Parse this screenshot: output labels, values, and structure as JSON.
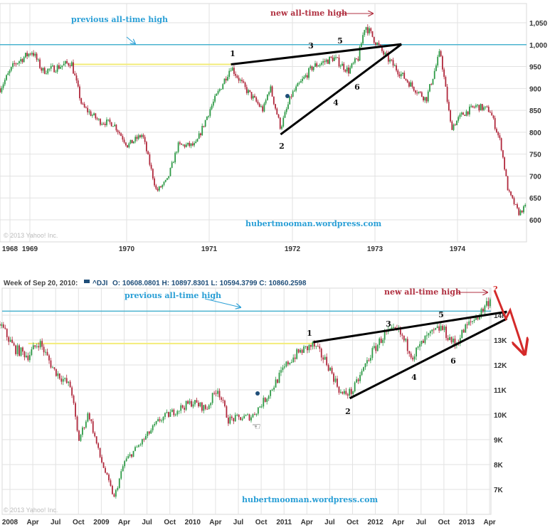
{
  "chart_data": [
    {
      "type": "candlestick",
      "title": "",
      "x_ticks": [
        "1968",
        "1969",
        "1970",
        "1971",
        "1972",
        "1973",
        "1974"
      ],
      "y_ticks": [
        "1,050",
        "1,000",
        "950",
        "900",
        "850",
        "800",
        "750",
        "700",
        "650",
        "600"
      ],
      "ylim": [
        580,
        1070
      ],
      "grid": true,
      "approx_close_path": {
        "t": [
          1968.64,
          1968.81,
          1969.03,
          1969.15,
          1969.28,
          1969.5,
          1969.63,
          1969.84,
          1970.01,
          1970.18,
          1970.36,
          1970.53,
          1970.66,
          1970.79,
          1971.0,
          1971.17,
          1971.43,
          1971.6,
          1971.82,
          1971.9,
          1972.03,
          1972.16,
          1972.42,
          1972.67,
          1972.85,
          1972.97,
          1973.05,
          1973.27,
          1973.45,
          1973.62,
          1973.79,
          1973.96,
          1974.09,
          1974.22,
          1974.39,
          1974.56,
          1974.69,
          1974.78,
          1974.91,
          1974.99
        ],
        "close": [
          900,
          955,
          985,
          940,
          945,
          960,
          860,
          825,
          820,
          770,
          795,
          665,
          690,
          770,
          770,
          850,
          950,
          900,
          850,
          905,
          810,
          885,
          950,
          970,
          940,
          970,
          1045,
          980,
          940,
          905,
          875,
          985,
          810,
          840,
          860,
          850,
          775,
          665,
          615,
          630
        ]
      },
      "reference_lines": {
        "previous_high": 1000,
        "prior_peak": 955
      },
      "trendlines": [
        {
          "from": [
            1971.43,
            955
          ],
          "to": [
            1973.49,
            1001
          ]
        },
        {
          "from": [
            1972.03,
            795
          ],
          "to": [
            1973.49,
            1001
          ]
        }
      ],
      "annotations": {
        "previous_high_label": "previous all-time high",
        "new_high_label": "new all-time high",
        "points": [
          "1",
          "2",
          "3",
          "4",
          "5",
          "6"
        ]
      },
      "watermark": "hubertmooman.wordpress.com",
      "copyright": "© 2013 Yahoo! Inc."
    },
    {
      "type": "candlestick",
      "title": "",
      "header": {
        "week": "Week of Sep 20, 2010:",
        "symbol": "^DJI",
        "ohlc": "O: 10608.0801 H: 10897.8301 L: 10594.3799 C: 10860.2598"
      },
      "x_ticks": [
        "2008",
        "Apr",
        "Jul",
        "Oct",
        "2009",
        "Apr",
        "Jul",
        "Oct",
        "2010",
        "Apr",
        "Jul",
        "Oct",
        "2011",
        "Apr",
        "Jul",
        "Oct",
        "2012",
        "Apr",
        "Jul",
        "Oct",
        "2013",
        "Apr"
      ],
      "y_ticks": [
        "14K",
        "13K",
        "12K",
        "11K",
        "10K",
        "9K",
        "8K",
        "7K"
      ],
      "ylim": [
        6300,
        15000
      ],
      "grid": true,
      "approx_close_path": {
        "t": [
          2007.89,
          2008.05,
          2008.2,
          2008.32,
          2008.48,
          2008.67,
          2008.75,
          2008.86,
          2008.98,
          2009.14,
          2009.25,
          2009.45,
          2009.64,
          2009.84,
          2010.0,
          2010.15,
          2010.27,
          2010.39,
          2010.65,
          2010.8,
          2011.04,
          2011.16,
          2011.32,
          2011.47,
          2011.63,
          2011.75,
          2011.94,
          2012.1,
          2012.25,
          2012.41,
          2012.56,
          2012.72,
          2012.87,
          2012.99,
          2013.15,
          2013.26
        ],
        "close": [
          13650,
          12650,
          12370,
          12940,
          11800,
          11090,
          8940,
          10090,
          8370,
          6660,
          8090,
          8940,
          9800,
          10230,
          10510,
          10230,
          11090,
          9800,
          9940,
          10660,
          12090,
          12510,
          12800,
          12090,
          10800,
          10940,
          12370,
          13230,
          13370,
          12370,
          13090,
          13510,
          12800,
          13510,
          14090,
          14710
        ]
      },
      "reference_lines": {
        "previous_high": 14160,
        "prior_peak": 12860
      },
      "trendlines": [
        {
          "from": [
            2011.32,
            12914
          ],
          "to": [
            2013.44,
            14140
          ]
        },
        {
          "from": [
            2011.72,
            10660
          ],
          "to": [
            2013.44,
            13860
          ]
        }
      ],
      "annotations": {
        "previous_high_label": "previous all-time high",
        "new_high_label": "new all-time high",
        "question": "?",
        "points": [
          "1",
          "2",
          "3",
          "4",
          "5",
          "6"
        ]
      },
      "watermark": "hubertmooman.wordpress.com",
      "copyright": "© 2013 Yahoo! Inc."
    }
  ],
  "colors": {
    "up": "#2e9a46",
    "down": "#b0283c",
    "previous_high_line": "#4bb3cf",
    "prior_peak_line": "#f3ec7a",
    "trendline": "#000000",
    "new_high": "#b03040",
    "previous_high_text": "#2a9fd6",
    "grid": "#e2e2e2"
  }
}
